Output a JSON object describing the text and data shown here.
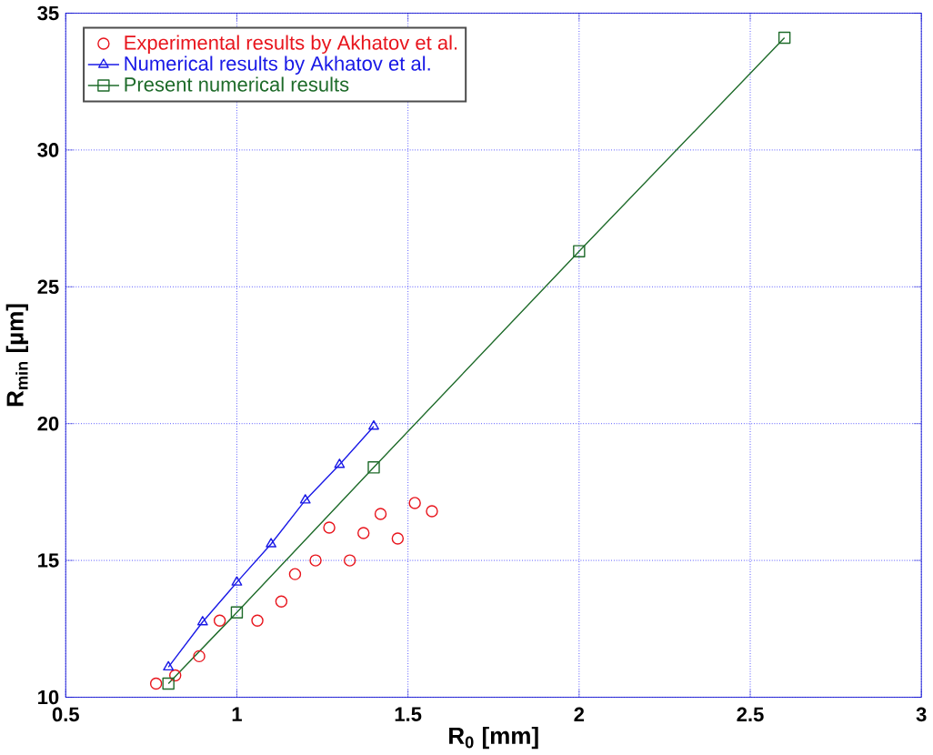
{
  "chart_data": {
    "type": "scatter",
    "xlabel": "R$_{0}$ [mm]",
    "ylabel": "R$_{min}$ [µm]",
    "xlim": [
      0.5,
      3
    ],
    "ylim": [
      10,
      35
    ],
    "xticks": [
      0.5,
      1,
      1.5,
      2,
      2.5,
      3
    ],
    "yticks": [
      10,
      15,
      20,
      25,
      30,
      35
    ],
    "grid": true,
    "legend": "top left",
    "series": [
      {
        "name": "Experimental results by Akhatov et al.",
        "marker": "circle",
        "color": "#e8141c",
        "x": [
          0.764,
          0.82,
          0.89,
          0.95,
          1.06,
          1.13,
          1.17,
          1.23,
          1.27,
          1.33,
          1.37,
          1.42,
          1.47,
          1.52,
          1.57
        ],
        "values": [
          10.5,
          10.8,
          11.5,
          12.8,
          12.8,
          13.5,
          14.5,
          15.0,
          16.2,
          15.0,
          16.0,
          16.7,
          15.8,
          17.1,
          16.8
        ]
      },
      {
        "name": "Numerical results by Akhatov et al.",
        "type": "line",
        "marker": "triangle",
        "line_style": "solid",
        "color": "#1a1ae6",
        "x": [
          0.8,
          0.9,
          1.0,
          1.1,
          1.2,
          1.3,
          1.4
        ],
        "values": [
          11.1,
          12.75,
          14.2,
          15.6,
          17.2,
          18.5,
          19.9
        ]
      },
      {
        "name": "Present numerical results",
        "type": "line",
        "marker": "square",
        "line_style": "solid",
        "color": "#1e6b2a",
        "x": [
          0.8,
          1.0,
          1.4,
          2.0,
          2.6
        ],
        "values": [
          10.5,
          13.1,
          18.4,
          26.3,
          34.1
        ]
      }
    ]
  }
}
